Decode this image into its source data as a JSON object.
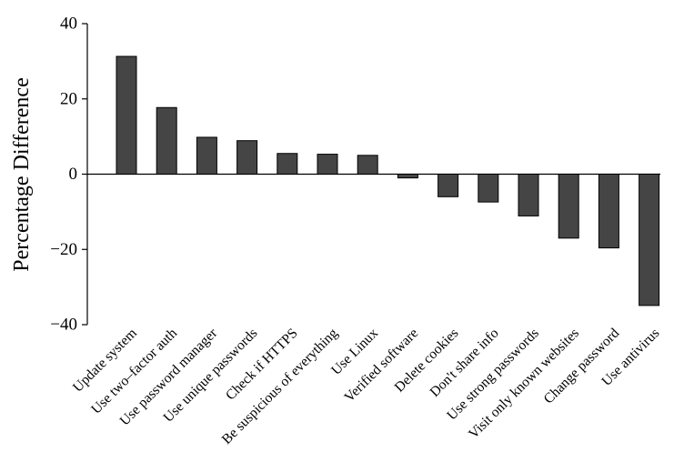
{
  "chart_data": {
    "type": "bar",
    "title": "",
    "xlabel": "",
    "ylabel": "Percentage Difference",
    "ylim": [
      -40,
      40
    ],
    "yticks": [
      40,
      20,
      0,
      -20,
      -40
    ],
    "ytick_labels": [
      "40",
      "20",
      "0",
      "−20",
      "−40"
    ],
    "grid": false,
    "legend": "none",
    "bar_color": "#454545",
    "categories": [
      "Update system",
      "Use two–factor auth",
      "Use password manager",
      "Use unique passwords",
      "Check if HTTPS",
      "Be suspicious of everything",
      "Use Linux",
      "Verified software",
      "Delete cookies",
      "Don't share info",
      "Use strong passwords",
      "Visit only known websites",
      "Change password",
      "Use antivirus"
    ],
    "values": [
      31.3,
      17.7,
      9.8,
      8.9,
      5.5,
      5.3,
      5.0,
      -1.0,
      -6.0,
      -7.4,
      -11.1,
      -17.0,
      -19.6,
      -34.9
    ]
  }
}
